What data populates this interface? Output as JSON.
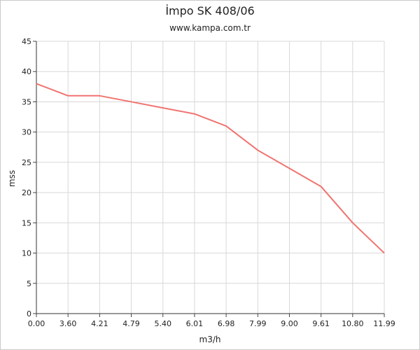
{
  "chart_data": {
    "type": "line",
    "title": "İmpo SK 408/06",
    "subtitle": "www.kampa.com.tr",
    "xlabel": "m3/h",
    "ylabel": "mss",
    "categories": [
      "0.00",
      "3.60",
      "4.21",
      "4.79",
      "5.40",
      "6.01",
      "6.98",
      "7.99",
      "9.00",
      "9.61",
      "10.80",
      "11.99"
    ],
    "series": [
      {
        "values": [
          38,
          36,
          36,
          35,
          34,
          33,
          31,
          27,
          24,
          21,
          15,
          10
        ]
      }
    ],
    "ylim": [
      0,
      45
    ],
    "yticks": [
      0,
      5,
      10,
      15,
      20,
      25,
      30,
      35,
      40,
      45
    ],
    "grid": true,
    "line_color": "#f07470"
  }
}
